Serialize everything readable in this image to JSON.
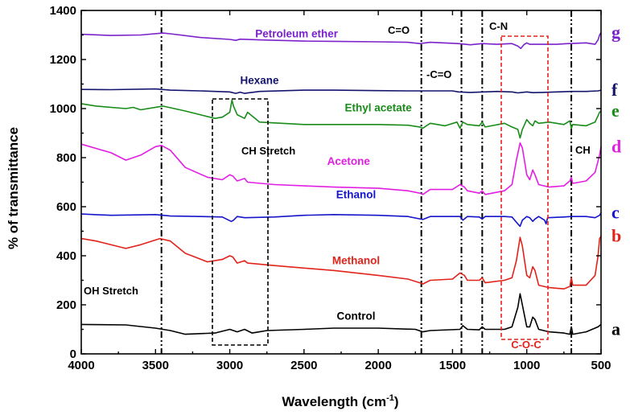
{
  "chart_data": {
    "type": "line",
    "title": "",
    "xlabel": "Wavelength (cm",
    "xlabel_sup": "-1",
    "xlabel_close": ")",
    "ylabel": "% of transmittance",
    "xlim": [
      4000,
      500
    ],
    "ylim": [
      0,
      1400
    ],
    "xticks": [
      4000,
      3500,
      3000,
      2500,
      2000,
      1500,
      1000,
      500
    ],
    "yticks": [
      0,
      200,
      400,
      600,
      800,
      1000,
      1200,
      1400
    ],
    "series": [
      {
        "name": "Control",
        "letter": "a",
        "color": "#000000",
        "label_x": 2150,
        "label_y": 140,
        "points": [
          [
            4000,
            120
          ],
          [
            3700,
            118
          ],
          [
            3500,
            105
          ],
          [
            3400,
            95
          ],
          [
            3300,
            80
          ],
          [
            3100,
            85
          ],
          [
            3000,
            100
          ],
          [
            2950,
            90
          ],
          [
            2900,
            100
          ],
          [
            2850,
            85
          ],
          [
            2800,
            90
          ],
          [
            2750,
            95
          ],
          [
            2500,
            100
          ],
          [
            2300,
            105
          ],
          [
            2000,
            105
          ],
          [
            1750,
            100
          ],
          [
            1700,
            90
          ],
          [
            1650,
            95
          ],
          [
            1450,
            100
          ],
          [
            1430,
            115
          ],
          [
            1400,
            100
          ],
          [
            1320,
            98
          ],
          [
            1300,
            110
          ],
          [
            1280,
            100
          ],
          [
            1150,
            100
          ],
          [
            1100,
            110
          ],
          [
            1060,
            190
          ],
          [
            1045,
            245
          ],
          [
            1030,
            200
          ],
          [
            1000,
            110
          ],
          [
            980,
            110
          ],
          [
            960,
            150
          ],
          [
            945,
            140
          ],
          [
            920,
            100
          ],
          [
            850,
            90
          ],
          [
            750,
            85
          ],
          [
            710,
            80
          ],
          [
            700,
            110
          ],
          [
            690,
            80
          ],
          [
            600,
            90
          ],
          [
            520,
            110
          ],
          [
            500,
            120
          ]
        ]
      },
      {
        "name": "Methanol",
        "letter": "b",
        "color": "#e2231a",
        "label_x": 2150,
        "label_y": 365,
        "points": [
          [
            4000,
            470
          ],
          [
            3900,
            460
          ],
          [
            3700,
            430
          ],
          [
            3600,
            445
          ],
          [
            3470,
            470
          ],
          [
            3400,
            460
          ],
          [
            3300,
            410
          ],
          [
            3150,
            375
          ],
          [
            3050,
            385
          ],
          [
            3000,
            400
          ],
          [
            2980,
            395
          ],
          [
            2950,
            370
          ],
          [
            2900,
            380
          ],
          [
            2880,
            370
          ],
          [
            2700,
            360
          ],
          [
            2500,
            350
          ],
          [
            2300,
            340
          ],
          [
            2000,
            320
          ],
          [
            1800,
            305
          ],
          [
            1720,
            290
          ],
          [
            1700,
            285
          ],
          [
            1650,
            300
          ],
          [
            1500,
            305
          ],
          [
            1450,
            330
          ],
          [
            1420,
            320
          ],
          [
            1400,
            300
          ],
          [
            1320,
            300
          ],
          [
            1300,
            310
          ],
          [
            1280,
            290
          ],
          [
            1150,
            300
          ],
          [
            1100,
            310
          ],
          [
            1070,
            380
          ],
          [
            1045,
            475
          ],
          [
            1030,
            440
          ],
          [
            1000,
            320
          ],
          [
            980,
            310
          ],
          [
            960,
            355
          ],
          [
            945,
            340
          ],
          [
            920,
            280
          ],
          [
            850,
            270
          ],
          [
            750,
            265
          ],
          [
            710,
            275
          ],
          [
            700,
            310
          ],
          [
            690,
            280
          ],
          [
            600,
            280
          ],
          [
            540,
            320
          ],
          [
            520,
            400
          ],
          [
            510,
            470
          ],
          [
            500,
            480
          ]
        ]
      },
      {
        "name": "Ethanol",
        "letter": "c",
        "color": "#1515cc",
        "label_x": 2150,
        "label_y": 635,
        "points": [
          [
            4000,
            570
          ],
          [
            3800,
            565
          ],
          [
            3500,
            568
          ],
          [
            3400,
            562
          ],
          [
            3200,
            560
          ],
          [
            3050,
            558
          ],
          [
            2990,
            540
          ],
          [
            2975,
            545
          ],
          [
            2950,
            560
          ],
          [
            2900,
            555
          ],
          [
            2700,
            558
          ],
          [
            2500,
            565
          ],
          [
            2300,
            568
          ],
          [
            2000,
            565
          ],
          [
            1800,
            560
          ],
          [
            1700,
            548
          ],
          [
            1650,
            560
          ],
          [
            1450,
            560
          ],
          [
            1430,
            545
          ],
          [
            1400,
            560
          ],
          [
            1320,
            558
          ],
          [
            1300,
            550
          ],
          [
            1280,
            560
          ],
          [
            1150,
            560
          ],
          [
            1100,
            558
          ],
          [
            1060,
            530
          ],
          [
            1045,
            520
          ],
          [
            1030,
            545
          ],
          [
            1000,
            560
          ],
          [
            980,
            555
          ],
          [
            960,
            540
          ],
          [
            945,
            550
          ],
          [
            920,
            560
          ],
          [
            880,
            545
          ],
          [
            870,
            530
          ],
          [
            860,
            555
          ],
          [
            750,
            558
          ],
          [
            700,
            560
          ],
          [
            600,
            560
          ],
          [
            540,
            555
          ],
          [
            510,
            565
          ],
          [
            500,
            575
          ]
        ]
      },
      {
        "name": "Acetone",
        "letter": "d",
        "color": "#e21ee2",
        "label_x": 2200,
        "label_y": 770,
        "points": [
          [
            4000,
            855
          ],
          [
            3800,
            820
          ],
          [
            3700,
            790
          ],
          [
            3600,
            810
          ],
          [
            3500,
            845
          ],
          [
            3460,
            850
          ],
          [
            3400,
            830
          ],
          [
            3300,
            760
          ],
          [
            3150,
            720
          ],
          [
            3050,
            710
          ],
          [
            3000,
            730
          ],
          [
            2980,
            725
          ],
          [
            2950,
            705
          ],
          [
            2900,
            715
          ],
          [
            2880,
            700
          ],
          [
            2700,
            690
          ],
          [
            2500,
            685
          ],
          [
            2300,
            680
          ],
          [
            2000,
            675
          ],
          [
            1800,
            665
          ],
          [
            1720,
            655
          ],
          [
            1700,
            650
          ],
          [
            1650,
            670
          ],
          [
            1500,
            670
          ],
          [
            1450,
            690
          ],
          [
            1420,
            680
          ],
          [
            1400,
            665
          ],
          [
            1320,
            655
          ],
          [
            1300,
            665
          ],
          [
            1280,
            650
          ],
          [
            1150,
            665
          ],
          [
            1100,
            690
          ],
          [
            1070,
            790
          ],
          [
            1045,
            860
          ],
          [
            1030,
            840
          ],
          [
            1000,
            730
          ],
          [
            980,
            710
          ],
          [
            960,
            750
          ],
          [
            945,
            730
          ],
          [
            920,
            690
          ],
          [
            850,
            680
          ],
          [
            750,
            685
          ],
          [
            710,
            705
          ],
          [
            700,
            720
          ],
          [
            690,
            695
          ],
          [
            600,
            705
          ],
          [
            540,
            740
          ],
          [
            510,
            810
          ],
          [
            500,
            845
          ]
        ]
      },
      {
        "name": "Ethyl acetate",
        "letter": "e",
        "color": "#198c19",
        "label_x": 2000,
        "label_y": 988,
        "points": [
          [
            4000,
            1020
          ],
          [
            3900,
            1010
          ],
          [
            3700,
            1000
          ],
          [
            3650,
            1005
          ],
          [
            3600,
            995
          ],
          [
            3450,
            1010
          ],
          [
            3300,
            990
          ],
          [
            3100,
            960
          ],
          [
            3050,
            965
          ],
          [
            3000,
            985
          ],
          [
            2985,
            1035
          ],
          [
            2975,
            1010
          ],
          [
            2950,
            975
          ],
          [
            2900,
            960
          ],
          [
            2880,
            985
          ],
          [
            2860,
            975
          ],
          [
            2800,
            945
          ],
          [
            2500,
            935
          ],
          [
            2300,
            935
          ],
          [
            2000,
            935
          ],
          [
            1800,
            932
          ],
          [
            1720,
            925
          ],
          [
            1700,
            920
          ],
          [
            1650,
            940
          ],
          [
            1550,
            930
          ],
          [
            1470,
            945
          ],
          [
            1450,
            920
          ],
          [
            1430,
            945
          ],
          [
            1400,
            935
          ],
          [
            1320,
            930
          ],
          [
            1300,
            945
          ],
          [
            1280,
            925
          ],
          [
            1150,
            940
          ],
          [
            1100,
            925
          ],
          [
            1060,
            915
          ],
          [
            1045,
            880
          ],
          [
            1030,
            915
          ],
          [
            1000,
            955
          ],
          [
            980,
            940
          ],
          [
            960,
            930
          ],
          [
            945,
            950
          ],
          [
            920,
            940
          ],
          [
            850,
            945
          ],
          [
            750,
            935
          ],
          [
            710,
            950
          ],
          [
            700,
            920
          ],
          [
            690,
            935
          ],
          [
            600,
            930
          ],
          [
            540,
            945
          ],
          [
            510,
            985
          ],
          [
            500,
            990
          ]
        ]
      },
      {
        "name": "Hexane",
        "letter": "f",
        "color": "#14146e",
        "label_x": 2800,
        "label_y": 1100,
        "points": [
          [
            4000,
            1078
          ],
          [
            3800,
            1077
          ],
          [
            3500,
            1080
          ],
          [
            3400,
            1075
          ],
          [
            3200,
            1072
          ],
          [
            3000,
            1068
          ],
          [
            2960,
            1062
          ],
          [
            2930,
            1067
          ],
          [
            2900,
            1062
          ],
          [
            2800,
            1070
          ],
          [
            2500,
            1075
          ],
          [
            2300,
            1075
          ],
          [
            2000,
            1073
          ],
          [
            1800,
            1072
          ],
          [
            1500,
            1072
          ],
          [
            1460,
            1068
          ],
          [
            1380,
            1066
          ],
          [
            1200,
            1070
          ],
          [
            1100,
            1068
          ],
          [
            1060,
            1064
          ],
          [
            1000,
            1068
          ],
          [
            960,
            1065
          ],
          [
            900,
            1066
          ],
          [
            800,
            1068
          ],
          [
            700,
            1070
          ],
          [
            600,
            1070
          ],
          [
            520,
            1072
          ],
          [
            500,
            1075
          ]
        ]
      },
      {
        "name": "Petroleum ether",
        "letter": "g",
        "color": "#7b22cc",
        "label_x": 2550,
        "label_y": 1290,
        "points": [
          [
            4000,
            1303
          ],
          [
            3800,
            1298
          ],
          [
            3600,
            1300
          ],
          [
            3450,
            1308
          ],
          [
            3400,
            1305
          ],
          [
            3200,
            1290
          ],
          [
            3000,
            1282
          ],
          [
            2960,
            1278
          ],
          [
            2930,
            1283
          ],
          [
            2800,
            1280
          ],
          [
            2500,
            1275
          ],
          [
            2300,
            1274
          ],
          [
            2000,
            1272
          ],
          [
            1800,
            1270
          ],
          [
            1720,
            1265
          ],
          [
            1650,
            1270
          ],
          [
            1460,
            1265
          ],
          [
            1380,
            1260
          ],
          [
            1300,
            1265
          ],
          [
            1200,
            1262
          ],
          [
            1100,
            1265
          ],
          [
            1060,
            1255
          ],
          [
            1040,
            1245
          ],
          [
            1020,
            1260
          ],
          [
            1000,
            1268
          ],
          [
            980,
            1262
          ],
          [
            900,
            1262
          ],
          [
            800,
            1262
          ],
          [
            720,
            1265
          ],
          [
            600,
            1268
          ],
          [
            540,
            1262
          ],
          [
            520,
            1280
          ],
          [
            510,
            1300
          ],
          [
            500,
            1310
          ]
        ]
      }
    ],
    "annotations": {
      "oh_stretch": "OH Stretch",
      "ch_stretch": "CH Stretch",
      "c_eq_o": "C=O",
      "minus_c_eq_o": "-C=O",
      "c_n": "C-N",
      "ch": "CH",
      "c_o_c": "C-O-C"
    },
    "vertical_markers": [
      3460,
      1710,
      1440,
      1300,
      700
    ]
  }
}
